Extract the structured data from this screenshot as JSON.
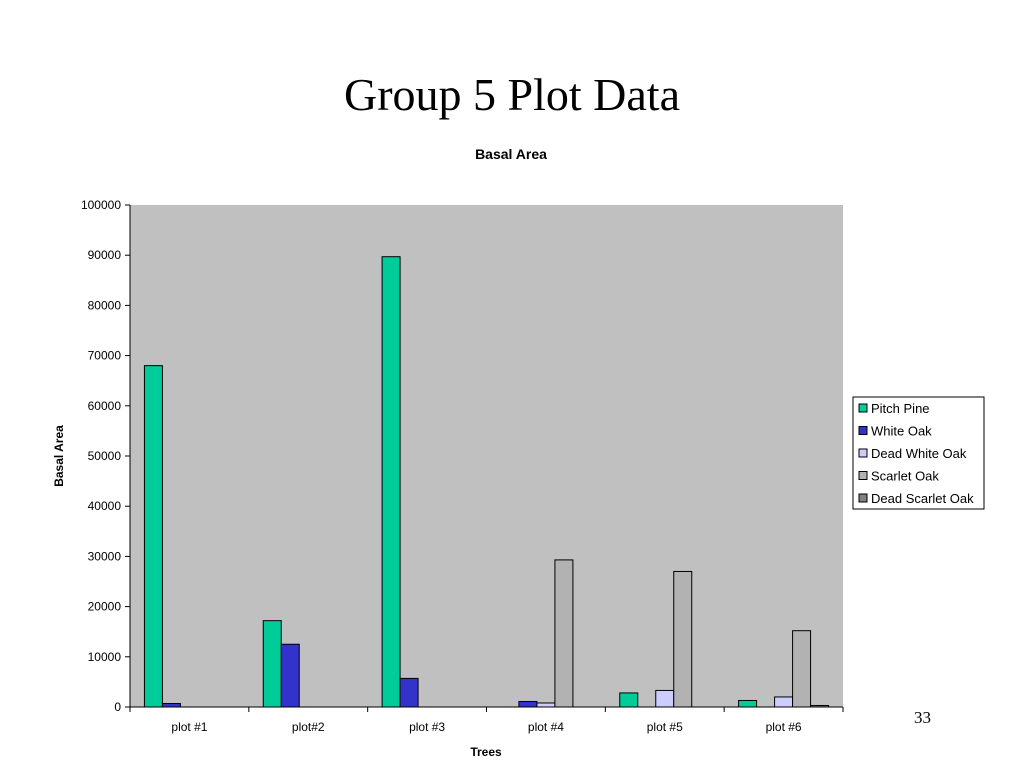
{
  "slide": {
    "title": "Group 5 Plot Data",
    "page_number": "33"
  },
  "chart_data": {
    "type": "bar",
    "title": "Basal Area",
    "xlabel": "Trees",
    "ylabel": "Basal Area",
    "ylim": [
      0,
      100000
    ],
    "yticks": [
      "0",
      "10000",
      "20000",
      "30000",
      "40000",
      "50000",
      "60000",
      "70000",
      "80000",
      "90000",
      "100000"
    ],
    "grid": false,
    "legend_position": "right",
    "plot_background": "#c0c0c0",
    "categories": [
      "plot #1",
      "plot#2",
      "plot #3",
      "plot #4",
      "plot #5",
      "plot #6"
    ],
    "series": [
      {
        "name": "Pitch Pine",
        "color": "#00cc99",
        "values": [
          68000,
          17200,
          89700,
          0,
          2800,
          1300
        ]
      },
      {
        "name": "White Oak",
        "color": "#3333cc",
        "values": [
          700,
          12500,
          5700,
          1100,
          0,
          0
        ]
      },
      {
        "name": "Dead White Oak",
        "color": "#ccccff",
        "values": [
          0,
          0,
          0,
          800,
          3300,
          2000
        ]
      },
      {
        "name": "Scarlet Oak",
        "color": "#b2b2b2",
        "values": [
          0,
          0,
          0,
          29300,
          27000,
          15200
        ]
      },
      {
        "name": "Dead Scarlet Oak",
        "color": "#808080",
        "values": [
          0,
          0,
          0,
          0,
          0,
          300
        ]
      }
    ]
  }
}
